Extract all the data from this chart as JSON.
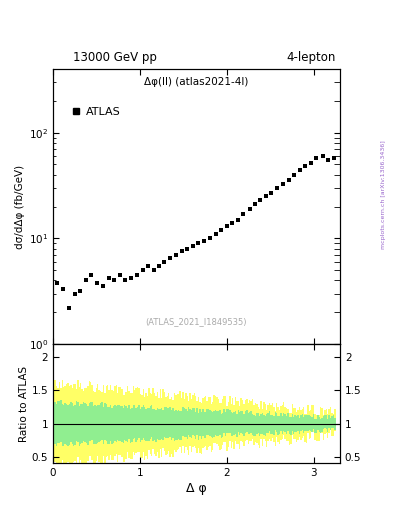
{
  "title_left": "13000 GeV pp",
  "title_right": "4-lepton",
  "annotation": "Δφ(ll) (atlas2021-4l)",
  "watermark": "(ATLAS_2021_I1849535)",
  "side_text": "mcplots.cern.ch [arXiv:1306.3436]",
  "xlabel": "Δ φ",
  "ylabel_main": "dσ/dΔφ (fb/GeV)",
  "ylabel_ratio": "Ratio to ATLAS",
  "legend_label": "ATLAS",
  "xlim": [
    0,
    3.3
  ],
  "ylim_main_log": [
    1.0,
    400.0
  ],
  "ylim_ratio": [
    0.4,
    2.2
  ],
  "data_x": [
    0.05,
    0.12,
    0.18,
    0.25,
    0.31,
    0.38,
    0.44,
    0.51,
    0.57,
    0.64,
    0.7,
    0.77,
    0.83,
    0.9,
    0.96,
    1.03,
    1.09,
    1.16,
    1.22,
    1.28,
    1.35,
    1.41,
    1.48,
    1.54,
    1.61,
    1.67,
    1.74,
    1.8,
    1.87,
    1.93,
    2.0,
    2.06,
    2.13,
    2.19,
    2.26,
    2.32,
    2.38,
    2.45,
    2.51,
    2.58,
    2.64,
    2.71,
    2.77,
    2.84,
    2.9,
    2.97,
    3.03,
    3.1,
    3.16,
    3.23
  ],
  "data_y": [
    3.8,
    3.3,
    2.2,
    3.0,
    3.2,
    4.0,
    4.5,
    3.8,
    3.5,
    4.2,
    4.0,
    4.5,
    4.0,
    4.2,
    4.5,
    5.0,
    5.5,
    5.0,
    5.5,
    6.0,
    6.5,
    7.0,
    7.5,
    8.0,
    8.5,
    9.0,
    9.5,
    10.0,
    11.0,
    12.0,
    13.0,
    14.0,
    15.0,
    17.0,
    19.0,
    21.0,
    23.0,
    25.0,
    27.0,
    30.0,
    33.0,
    36.0,
    40.0,
    44.0,
    48.0,
    52.0,
    57.0,
    60.0,
    55.0,
    58.0
  ],
  "background_color": "#ffffff",
  "marker_color": "#000000",
  "green_color": "#90ee90",
  "yellow_color": "#ffff66",
  "ratio_line_color": "#000000",
  "side_text_color": "#9966cc",
  "watermark_color": "#aaaaaa"
}
